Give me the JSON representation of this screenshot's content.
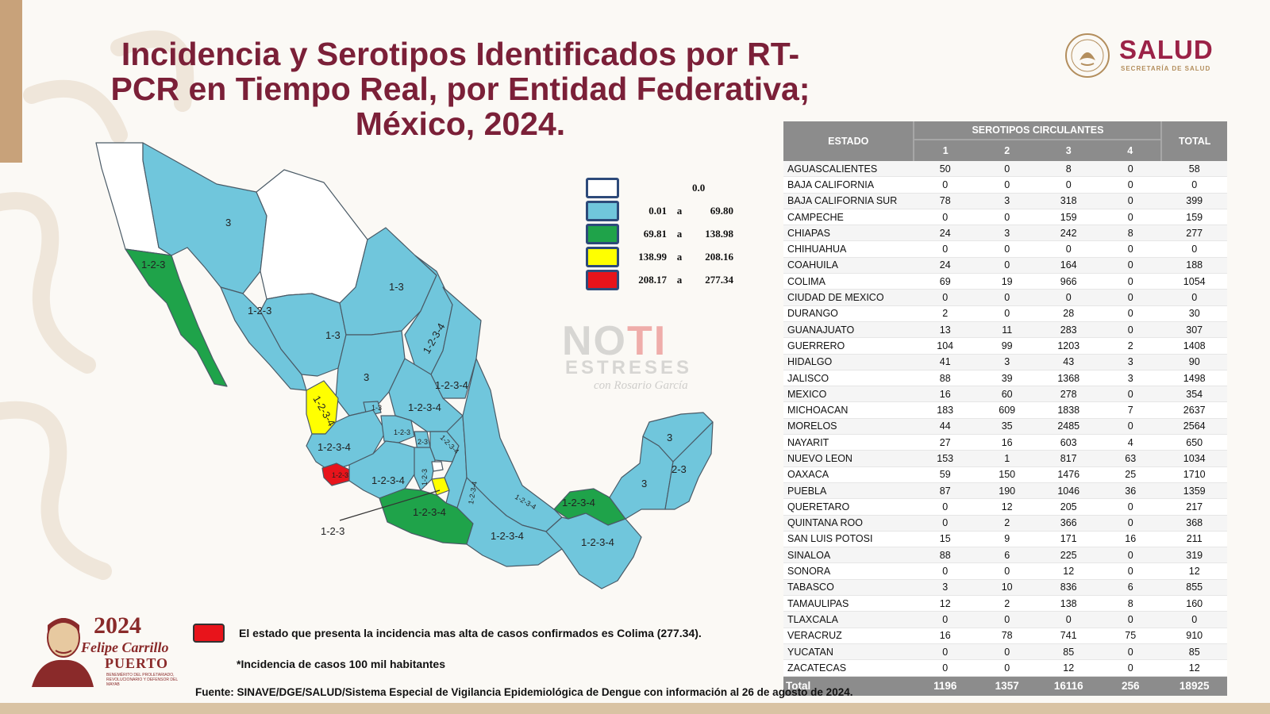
{
  "title": "Incidencia y Serotipos Identificados por RT-PCR en Tiempo Real, por Entidad Federativa; México, 2024.",
  "header_logo": {
    "name": "SALUD",
    "subtitle": "SECRETARÍA DE SALUD"
  },
  "legend": [
    {
      "color": "#ffffff",
      "from": "",
      "sep": "",
      "to": "0.0"
    },
    {
      "color": "#70c6dc",
      "from": "0.01",
      "sep": "a",
      "to": "69.80"
    },
    {
      "color": "#1fa34a",
      "from": "69.81",
      "sep": "a",
      "to": "138.98"
    },
    {
      "color": "#ffff00",
      "from": "138.99",
      "sep": "a",
      "to": "208.16"
    },
    {
      "color": "#e8141b",
      "from": "208.17",
      "sep": "a",
      "to": "277.34"
    }
  ],
  "map_labels": {
    "sonora": "3",
    "baja_california_sur": "1-2-3",
    "sinaloa": "1-2-3",
    "coahuila": "1-3",
    "durango": "1-3",
    "nuevo_leon": "1-2-3-4",
    "tamaulipas": "1-2-3-4",
    "zacatecas": "3",
    "nayarit": "1-2-3-4",
    "aguascalientes": "1-3",
    "slp": "1-2-3-4",
    "jalisco": "1-2-3-4",
    "guanajuato": "1-2-3",
    "queretaro": "2-3",
    "hidalgo": "1-2-3-4",
    "colima": "1-2-3",
    "michoacan": "1-2-3-4",
    "mexico": "1-2-3",
    "veracruz": "1-2-3-4",
    "puebla": "1-2-3-4",
    "guerrero": "1-2-3-4",
    "oaxaca": "1-2-3-4",
    "chiapas": "1-2-3-4",
    "tabasco": "1-2-3-4",
    "campeche": "3",
    "yucatan": "3",
    "quintana_roo": "2-3",
    "morelos_callout": "1-2-3"
  },
  "watermark": {
    "line1a": "NO",
    "line1b": "TI",
    "line2": "ESTRESES",
    "line3": "con Rosario García"
  },
  "table": {
    "header_estado": "ESTADO",
    "header_group": "SEROTIPOS CIRCULANTES",
    "header_total": "TOTAL",
    "serotypes": [
      "1",
      "2",
      "3",
      "4"
    ],
    "rows": [
      {
        "estado": "AGUASCALIENTES",
        "s1": "50",
        "s2": "0",
        "s3": "8",
        "s4": "0",
        "total": "58"
      },
      {
        "estado": "BAJA CALIFORNIA",
        "s1": "0",
        "s2": "0",
        "s3": "0",
        "s4": "0",
        "total": "0"
      },
      {
        "estado": "BAJA CALIFORNIA SUR",
        "s1": "78",
        "s2": "3",
        "s3": "318",
        "s4": "0",
        "total": "399"
      },
      {
        "estado": "CAMPECHE",
        "s1": "0",
        "s2": "0",
        "s3": "159",
        "s4": "0",
        "total": "159"
      },
      {
        "estado": "CHIAPAS",
        "s1": "24",
        "s2": "3",
        "s3": "242",
        "s4": "8",
        "total": "277"
      },
      {
        "estado": "CHIHUAHUA",
        "s1": "0",
        "s2": "0",
        "s3": "0",
        "s4": "0",
        "total": "0"
      },
      {
        "estado": "COAHUILA",
        "s1": "24",
        "s2": "0",
        "s3": "164",
        "s4": "0",
        "total": "188"
      },
      {
        "estado": "COLIMA",
        "s1": "69",
        "s2": "19",
        "s3": "966",
        "s4": "0",
        "total": "1054"
      },
      {
        "estado": "CIUDAD DE MEXICO",
        "s1": "0",
        "s2": "0",
        "s3": "0",
        "s4": "0",
        "total": "0"
      },
      {
        "estado": "DURANGO",
        "s1": "2",
        "s2": "0",
        "s3": "28",
        "s4": "0",
        "total": "30"
      },
      {
        "estado": "GUANAJUATO",
        "s1": "13",
        "s2": "11",
        "s3": "283",
        "s4": "0",
        "total": "307"
      },
      {
        "estado": "GUERRERO",
        "s1": "104",
        "s2": "99",
        "s3": "1203",
        "s4": "2",
        "total": "1408"
      },
      {
        "estado": "HIDALGO",
        "s1": "41",
        "s2": "3",
        "s3": "43",
        "s4": "3",
        "total": "90"
      },
      {
        "estado": "JALISCO",
        "s1": "88",
        "s2": "39",
        "s3": "1368",
        "s4": "3",
        "total": "1498"
      },
      {
        "estado": "MEXICO",
        "s1": "16",
        "s2": "60",
        "s3": "278",
        "s4": "0",
        "total": "354"
      },
      {
        "estado": "MICHOACAN",
        "s1": "183",
        "s2": "609",
        "s3": "1838",
        "s4": "7",
        "total": "2637"
      },
      {
        "estado": "MORELOS",
        "s1": "44",
        "s2": "35",
        "s3": "2485",
        "s4": "0",
        "total": "2564"
      },
      {
        "estado": "NAYARIT",
        "s1": "27",
        "s2": "16",
        "s3": "603",
        "s4": "4",
        "total": "650"
      },
      {
        "estado": "NUEVO LEON",
        "s1": "153",
        "s2": "1",
        "s3": "817",
        "s4": "63",
        "total": "1034"
      },
      {
        "estado": "OAXACA",
        "s1": "59",
        "s2": "150",
        "s3": "1476",
        "s4": "25",
        "total": "1710"
      },
      {
        "estado": "PUEBLA",
        "s1": "87",
        "s2": "190",
        "s3": "1046",
        "s4": "36",
        "total": "1359"
      },
      {
        "estado": "QUERETARO",
        "s1": "0",
        "s2": "12",
        "s3": "205",
        "s4": "0",
        "total": "217"
      },
      {
        "estado": "QUINTANA ROO",
        "s1": "0",
        "s2": "2",
        "s3": "366",
        "s4": "0",
        "total": "368"
      },
      {
        "estado": "SAN LUIS POTOSI",
        "s1": "15",
        "s2": "9",
        "s3": "171",
        "s4": "16",
        "total": "211"
      },
      {
        "estado": "SINALOA",
        "s1": "88",
        "s2": "6",
        "s3": "225",
        "s4": "0",
        "total": "319"
      },
      {
        "estado": "SONORA",
        "s1": "0",
        "s2": "0",
        "s3": "12",
        "s4": "0",
        "total": "12"
      },
      {
        "estado": "TABASCO",
        "s1": "3",
        "s2": "10",
        "s3": "836",
        "s4": "6",
        "total": "855"
      },
      {
        "estado": "TAMAULIPAS",
        "s1": "12",
        "s2": "2",
        "s3": "138",
        "s4": "8",
        "total": "160"
      },
      {
        "estado": "TLAXCALA",
        "s1": "0",
        "s2": "0",
        "s3": "0",
        "s4": "0",
        "total": "0"
      },
      {
        "estado": "VERACRUZ",
        "s1": "16",
        "s2": "78",
        "s3": "741",
        "s4": "75",
        "total": "910"
      },
      {
        "estado": "YUCATAN",
        "s1": "0",
        "s2": "0",
        "s3": "85",
        "s4": "0",
        "total": "85"
      },
      {
        "estado": "ZACATECAS",
        "s1": "0",
        "s2": "0",
        "s3": "12",
        "s4": "0",
        "total": "12"
      }
    ],
    "total_row": {
      "estado": "Total",
      "s1": "1196",
      "s2": "1357",
      "s3": "16116",
      "s4": "256",
      "total": "18925"
    }
  },
  "note_colima": "El estado que presenta la incidencia mas alta de casos confirmados es Colima (277.34).",
  "note_incidence": "*Incidencia de casos 100 mil habitantes",
  "source": "Fuente: SINAVE/DGE/SALUD/Sistema Especial de Vigilancia Epidemiológica de Dengue con información al 26 de agosto de 2024.",
  "logo_2024": {
    "year": "2024",
    "name1": "Felipe Carrillo",
    "name2": "PUERTO",
    "small": "BENEMÉRITO DEL PROLETARIADO, REVOLUCIONARIO Y DEFENSOR DEL MAYAB",
    "year_prefix": "AÑO DE"
  },
  "colors": {
    "title": "#7b2038",
    "brand": "#9b2247",
    "gold": "#b38e5d",
    "blue": "#70c6dc",
    "green": "#1fa34a",
    "yellow": "#ffff00",
    "red": "#e8141b",
    "white": "#ffffff"
  }
}
